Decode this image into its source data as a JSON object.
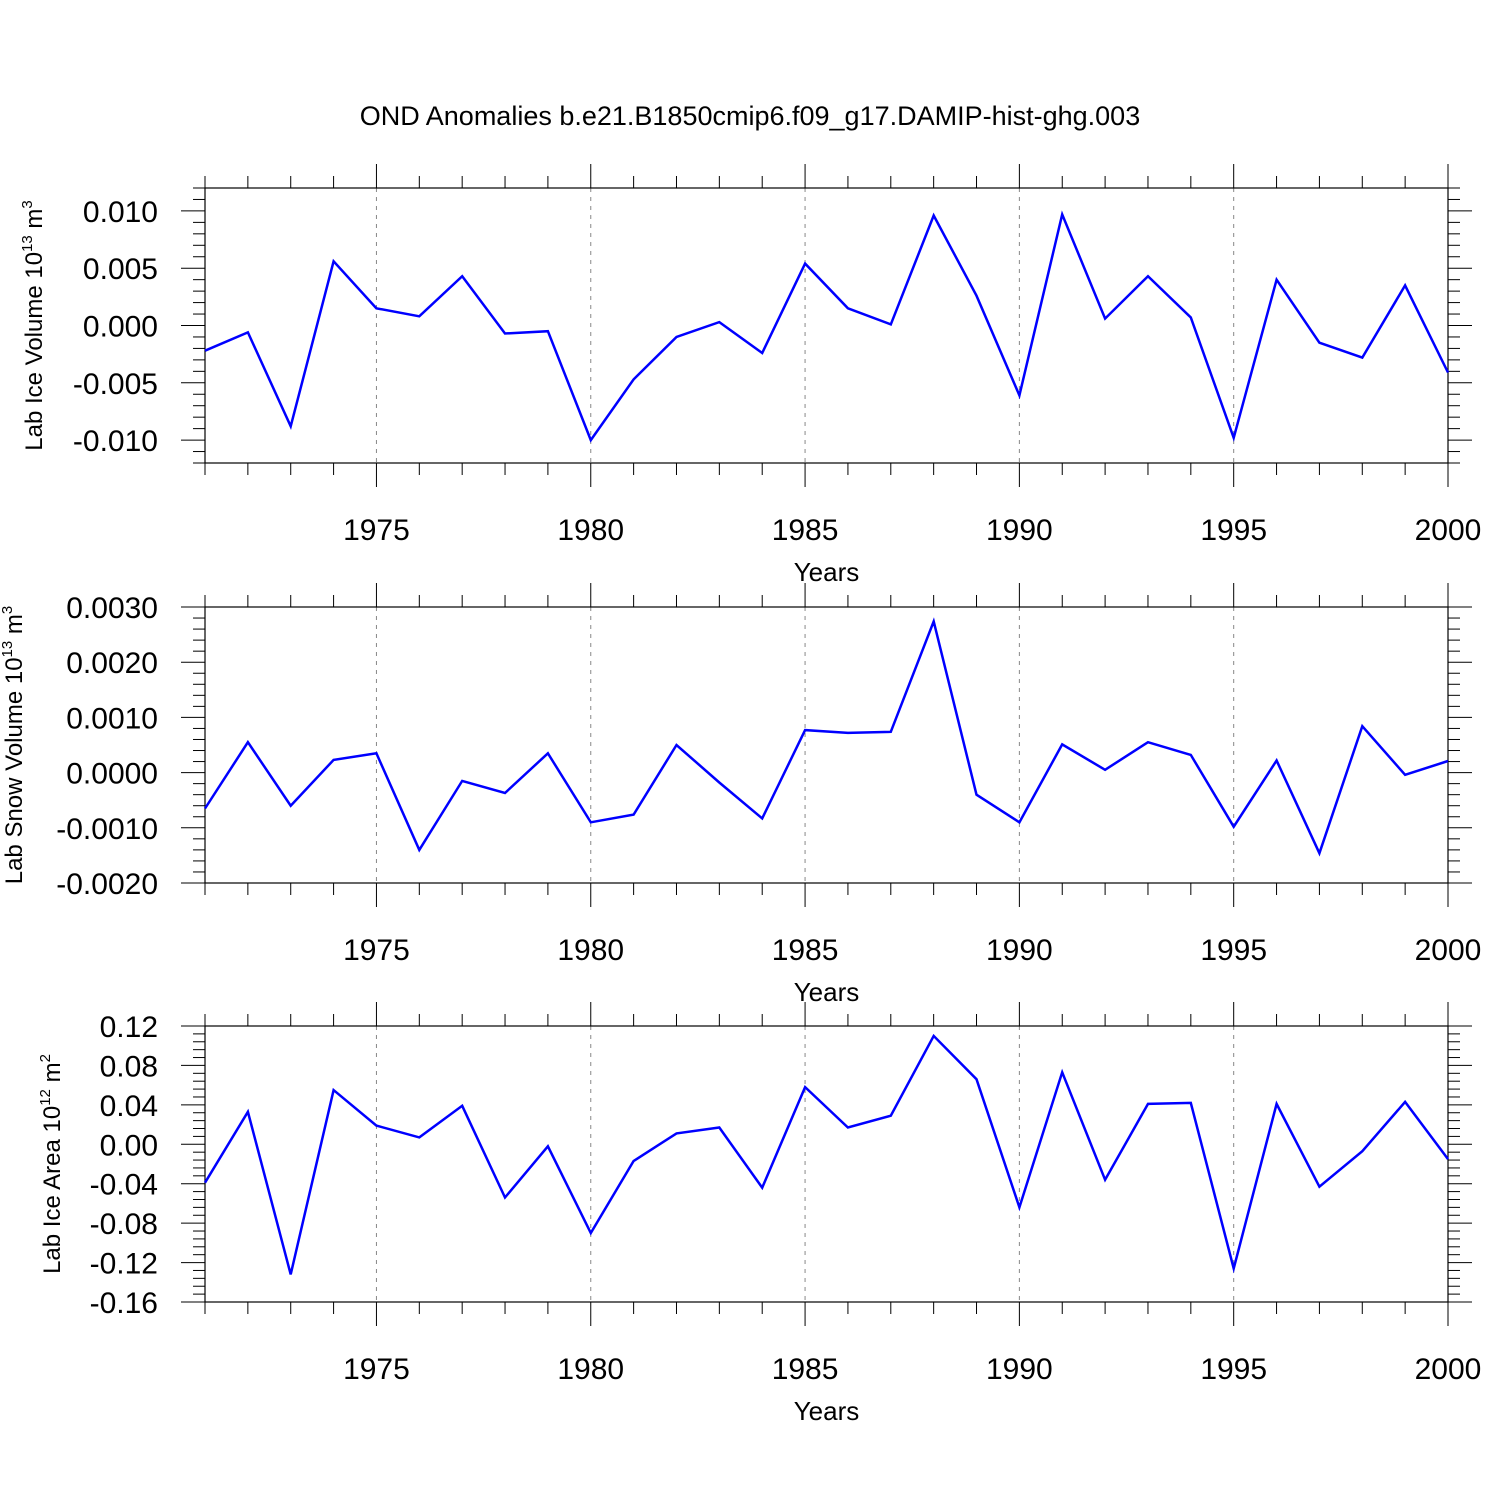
{
  "title": "OND Anomalies b.e21.B1850cmip6.f09_g17.DAMIP-hist-ghg.003",
  "line_color": "#0000ff",
  "chart_data": [
    {
      "type": "line",
      "title": "OND Anomalies b.e21.B1850cmip6.f09_g17.DAMIP-hist-ghg.003",
      "xlabel": "Years",
      "ylabel": {
        "main": "Lab Ice Volume 10",
        "sup": "13",
        "unit": " m",
        "unit_sup": "3"
      },
      "xlim": [
        1971,
        2000
      ],
      "ylim": [
        -0.012,
        0.012
      ],
      "xticks": [
        "1975",
        "1980",
        "1985",
        "1990",
        "1995",
        "2000"
      ],
      "yticks": [
        "0.010",
        "0.005",
        "0.000",
        "-0.005",
        "-0.010"
      ],
      "ytick_values": [
        0.01,
        0.005,
        0.0,
        -0.005,
        -0.01
      ],
      "grid": "vertical dashed at major x ticks",
      "x": [
        1971,
        1972,
        1973,
        1974,
        1975,
        1976,
        1977,
        1978,
        1979,
        1980,
        1981,
        1982,
        1983,
        1984,
        1985,
        1986,
        1987,
        1988,
        1989,
        1990,
        1991,
        1992,
        1993,
        1994,
        1995,
        1996,
        1997,
        1998,
        1999,
        2000
      ],
      "values": [
        -0.0022,
        -0.0006,
        -0.0088,
        0.0056,
        0.0015,
        0.0008,
        0.0043,
        -0.0007,
        -0.0005,
        -0.01,
        -0.0047,
        -0.001,
        0.0003,
        -0.0024,
        0.0054,
        0.0015,
        0.0001,
        0.0096,
        0.0026,
        -0.0061,
        0.0097,
        0.0006,
        0.0043,
        0.0007,
        -0.0098,
        0.004,
        -0.0015,
        -0.0028,
        0.0035,
        -0.0041
      ]
    },
    {
      "type": "line",
      "xlabel": "Years",
      "ylabel": {
        "main": "Lab Snow Volume 10",
        "sup": "13",
        "unit": " m",
        "unit_sup": "3"
      },
      "xlim": [
        1971,
        2000
      ],
      "ylim": [
        -0.002,
        0.003
      ],
      "xticks": [
        "1975",
        "1980",
        "1985",
        "1990",
        "1995",
        "2000"
      ],
      "yticks": [
        "0.0030",
        "0.0020",
        "0.0010",
        "0.0000",
        "-0.0010",
        "-0.0020"
      ],
      "ytick_values": [
        0.003,
        0.002,
        0.001,
        0.0,
        -0.001,
        -0.002
      ],
      "grid": "vertical dashed at major x ticks",
      "x": [
        1971,
        1972,
        1973,
        1974,
        1975,
        1976,
        1977,
        1978,
        1979,
        1980,
        1981,
        1982,
        1983,
        1984,
        1985,
        1986,
        1987,
        1988,
        1989,
        1990,
        1991,
        1992,
        1993,
        1994,
        1995,
        1996,
        1997,
        1998,
        1999,
        2000
      ],
      "values": [
        -0.00065,
        0.00055,
        -0.0006,
        0.00023,
        0.00035,
        -0.0014,
        -0.00015,
        -0.00037,
        0.00035,
        -0.0009,
        -0.00076,
        0.0005,
        -0.00018,
        -0.00083,
        0.00077,
        0.00072,
        0.00074,
        0.00274,
        -0.0004,
        -0.0009,
        0.00051,
        5e-05,
        0.00055,
        0.00032,
        -0.00098,
        0.00022,
        -0.00146,
        0.00084,
        -4e-05,
        0.00021
      ]
    },
    {
      "type": "line",
      "xlabel": "Years",
      "ylabel": {
        "main": "Lab Ice Area 10",
        "sup": "12",
        "unit": " m",
        "unit_sup": "2"
      },
      "xlim": [
        1971,
        2000
      ],
      "ylim": [
        -0.16,
        0.12
      ],
      "xticks": [
        "1975",
        "1980",
        "1985",
        "1990",
        "1995",
        "2000"
      ],
      "yticks": [
        "0.12",
        "0.08",
        "0.04",
        "0.00",
        "-0.04",
        "-0.08",
        "-0.12",
        "-0.16"
      ],
      "ytick_values": [
        0.12,
        0.08,
        0.04,
        0.0,
        -0.04,
        -0.08,
        -0.12,
        -0.16
      ],
      "grid": "vertical dashed at major x ticks",
      "x": [
        1971,
        1972,
        1973,
        1974,
        1975,
        1976,
        1977,
        1978,
        1979,
        1980,
        1981,
        1982,
        1983,
        1984,
        1985,
        1986,
        1987,
        1988,
        1989,
        1990,
        1991,
        1992,
        1993,
        1994,
        1995,
        1996,
        1997,
        1998,
        1999,
        2000
      ],
      "values": [
        -0.039,
        0.033,
        -0.132,
        0.055,
        0.019,
        0.007,
        0.039,
        -0.054,
        -0.002,
        -0.09,
        -0.017,
        0.011,
        0.017,
        -0.044,
        0.058,
        0.017,
        0.029,
        0.11,
        0.066,
        -0.064,
        0.073,
        -0.036,
        0.041,
        0.042,
        -0.126,
        0.041,
        -0.043,
        -0.007,
        0.043,
        -0.015
      ]
    }
  ]
}
